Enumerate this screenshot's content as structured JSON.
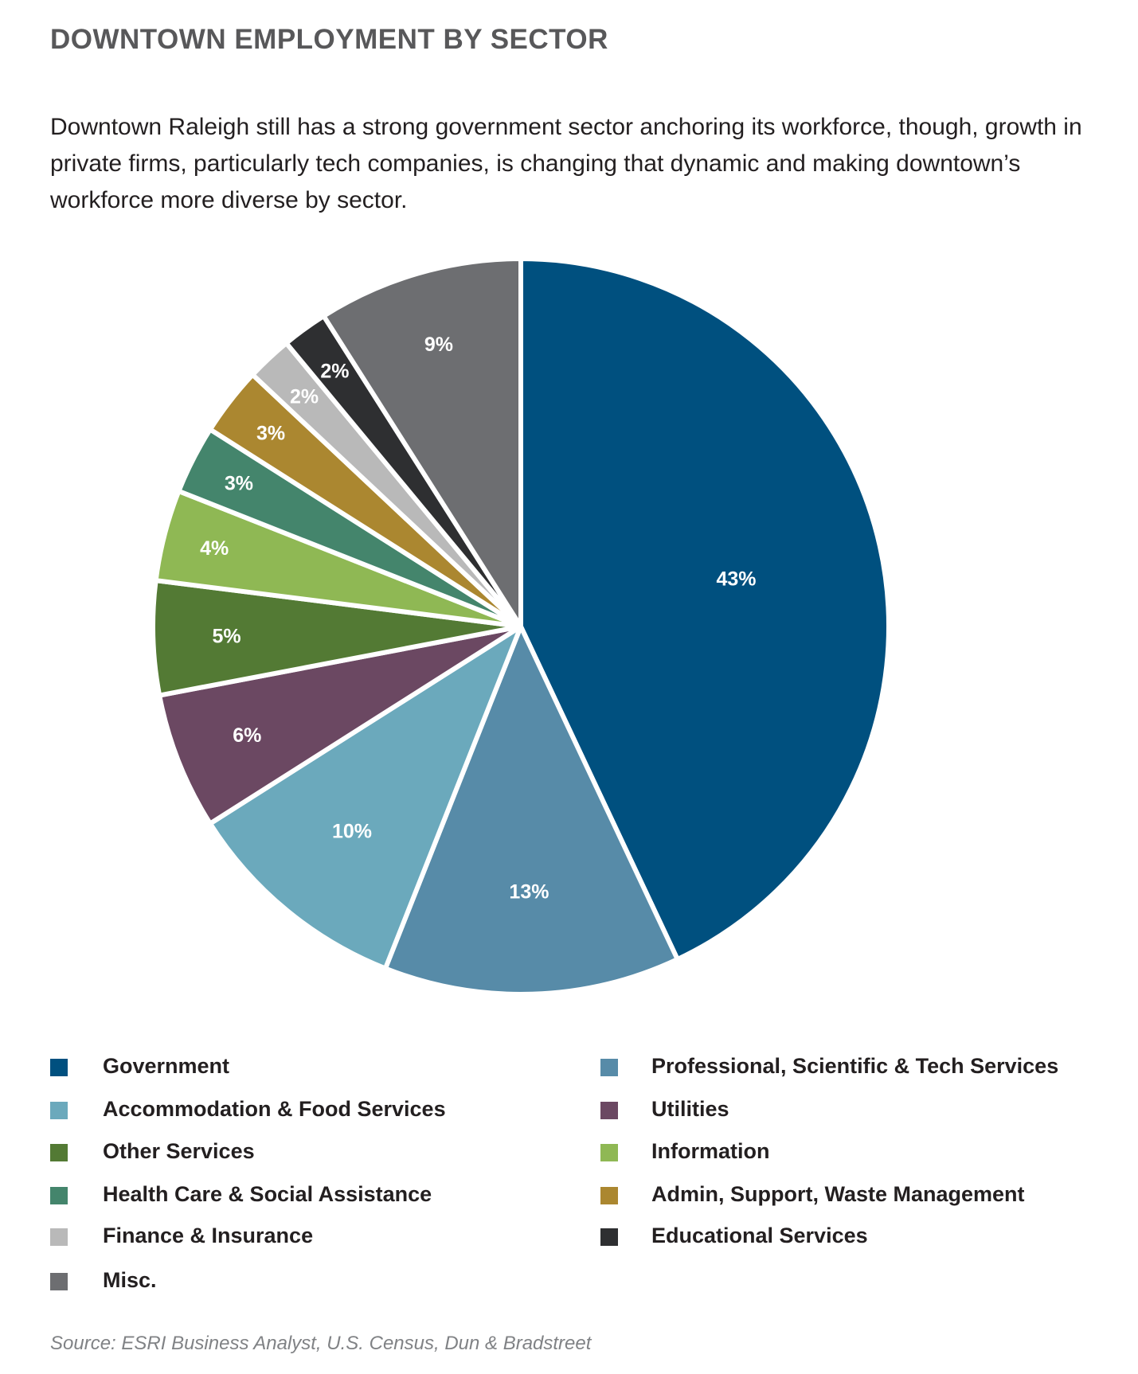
{
  "title": "DOWNTOWN EMPLOYMENT BY SECTOR",
  "description": "Downtown Raleigh still has a strong government sector anchoring its workforce, though, growth in private firms, particularly tech companies, is changing that dynamic and making downtown’s workforce more diverse by sector.",
  "source": "Source: ESRI Business Analyst, U.S. Census, Dun & Bradstreet",
  "chart_data": {
    "type": "pie",
    "start": "top, clockwise",
    "slices": [
      {
        "name": "Government",
        "value": 43,
        "label": "43%",
        "color": "#00507f"
      },
      {
        "name": "Professional, Scientific & Tech Services",
        "value": 13,
        "label": "13%",
        "color": "#578ba8"
      },
      {
        "name": "Accommodation & Food Services",
        "value": 10,
        "label": "10%",
        "color": "#6ba9bc"
      },
      {
        "name": "Utilities",
        "value": 6,
        "label": "6%",
        "color": "#6b4862"
      },
      {
        "name": "Other Services",
        "value": 5,
        "label": "5%",
        "color": "#537a34"
      },
      {
        "name": "Information",
        "value": 4,
        "label": "4%",
        "color": "#8fb854"
      },
      {
        "name": "Health Care & Social Assistance",
        "value": 3,
        "label": "3%",
        "color": "#44856c"
      },
      {
        "name": "Admin, Support, Waste Management",
        "value": 3,
        "label": "3%",
        "color": "#ab8730"
      },
      {
        "name": "Finance & Insurance",
        "value": 2,
        "label": "2%",
        "color": "#b9b9b9"
      },
      {
        "name": "Educational Services",
        "value": 2,
        "label": "2%",
        "color": "#2e2f31"
      },
      {
        "name": "Misc.",
        "value": 9,
        "label": "9%",
        "color": "#6d6e71"
      }
    ],
    "legend": "bottom, two columns"
  }
}
